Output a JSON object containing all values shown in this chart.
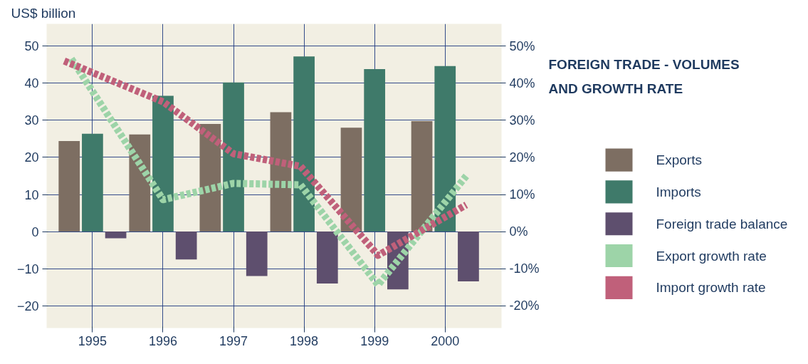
{
  "chart_data": {
    "type": "bar",
    "title": "FOREIGN TRADE - VOLUMES\nAND  GROWTH RATE",
    "ylabel": "US$ billion",
    "x": [
      1995,
      1996,
      1997,
      1998,
      1999,
      2000
    ],
    "series": [
      {
        "name": "Exports",
        "color": "#7d6e62",
        "values": [
          24.4,
          26.2,
          29,
          32.2,
          28,
          29.8
        ]
      },
      {
        "name": "Imports",
        "color": "#3f7a6a",
        "values": [
          26.4,
          36.6,
          40.2,
          47.2,
          43.8,
          44.6
        ]
      },
      {
        "name": "Foreign trade balance",
        "color": "#5e4f6e",
        "values": [
          -1.8,
          -7.5,
          -12,
          -14,
          -15.6,
          -13.4
        ]
      },
      {
        "name": "Export growth rate",
        "color": "#9dd4a8",
        "type": "line",
        "axis": "y2",
        "x": [
          1994.7,
          1996,
          1997,
          1997.95,
          1999.05,
          2000.3
        ],
        "values": [
          46.6,
          8.6,
          13,
          12.6,
          -14.4,
          15
        ]
      },
      {
        "name": "Import growth rate",
        "color": "#c0607a",
        "type": "line",
        "axis": "y2",
        "x": [
          1994.6,
          1996,
          1997,
          1997.95,
          1999.05,
          2000.3
        ],
        "values": [
          46,
          35,
          21,
          17.6,
          -6.4,
          7.2
        ]
      }
    ],
    "xlim": [
      1994.35,
      2000.8
    ],
    "xticks": [
      1995,
      1996,
      1997,
      1998,
      1999,
      2000
    ],
    "ylim": [
      -26,
      56
    ],
    "yticks": [
      -20,
      -10,
      0,
      10,
      20,
      30,
      40,
      50
    ],
    "y2lim": [
      -26,
      56
    ],
    "y2ticks": [
      {
        "value": -20,
        "label": "-20%"
      },
      {
        "value": -10,
        "label": "-10%"
      },
      {
        "value": 0,
        "label": "0%"
      },
      {
        "value": 10,
        "label": "10%"
      },
      {
        "value": 20,
        "label": "20%"
      },
      {
        "value": 30,
        "label": "30%"
      },
      {
        "value": 40,
        "label": "40%"
      },
      {
        "value": 50,
        "label": "50%"
      }
    ],
    "grid": true,
    "legend": "right",
    "line_style": "dashed",
    "marker": "none"
  }
}
